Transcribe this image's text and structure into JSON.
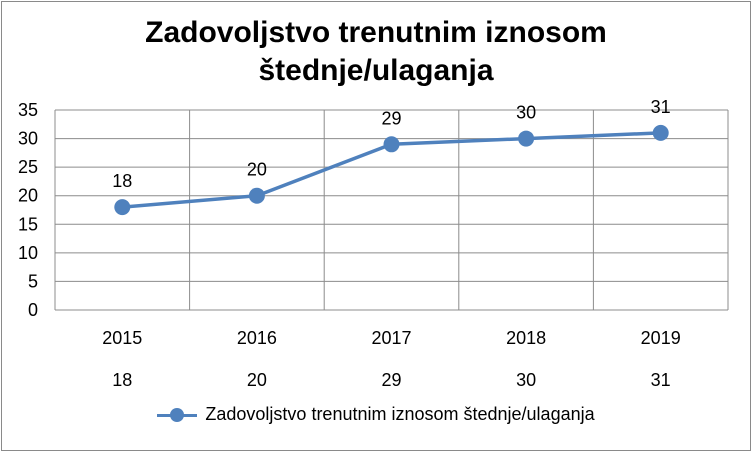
{
  "chart_data": {
    "type": "line",
    "title_line1": "Zadovoljstvo trenutnim iznosom",
    "title_line2": "štednje/ulaganja",
    "categories": [
      "2015",
      "2016",
      "2017",
      "2018",
      "2019"
    ],
    "series": [
      {
        "name": "Zadovoljstvo trenutnim iznosom štednje/ulaganja",
        "values": [
          18,
          20,
          29,
          30,
          31
        ]
      }
    ],
    "ylim": [
      0,
      35
    ],
    "yticks": [
      "0",
      "5",
      "10",
      "15",
      "20",
      "25",
      "30",
      "35"
    ],
    "grid": true,
    "legend": "bottom",
    "data_table_row": [
      "18",
      "20",
      "29",
      "30",
      "31"
    ],
    "color": "#4f81bd"
  }
}
